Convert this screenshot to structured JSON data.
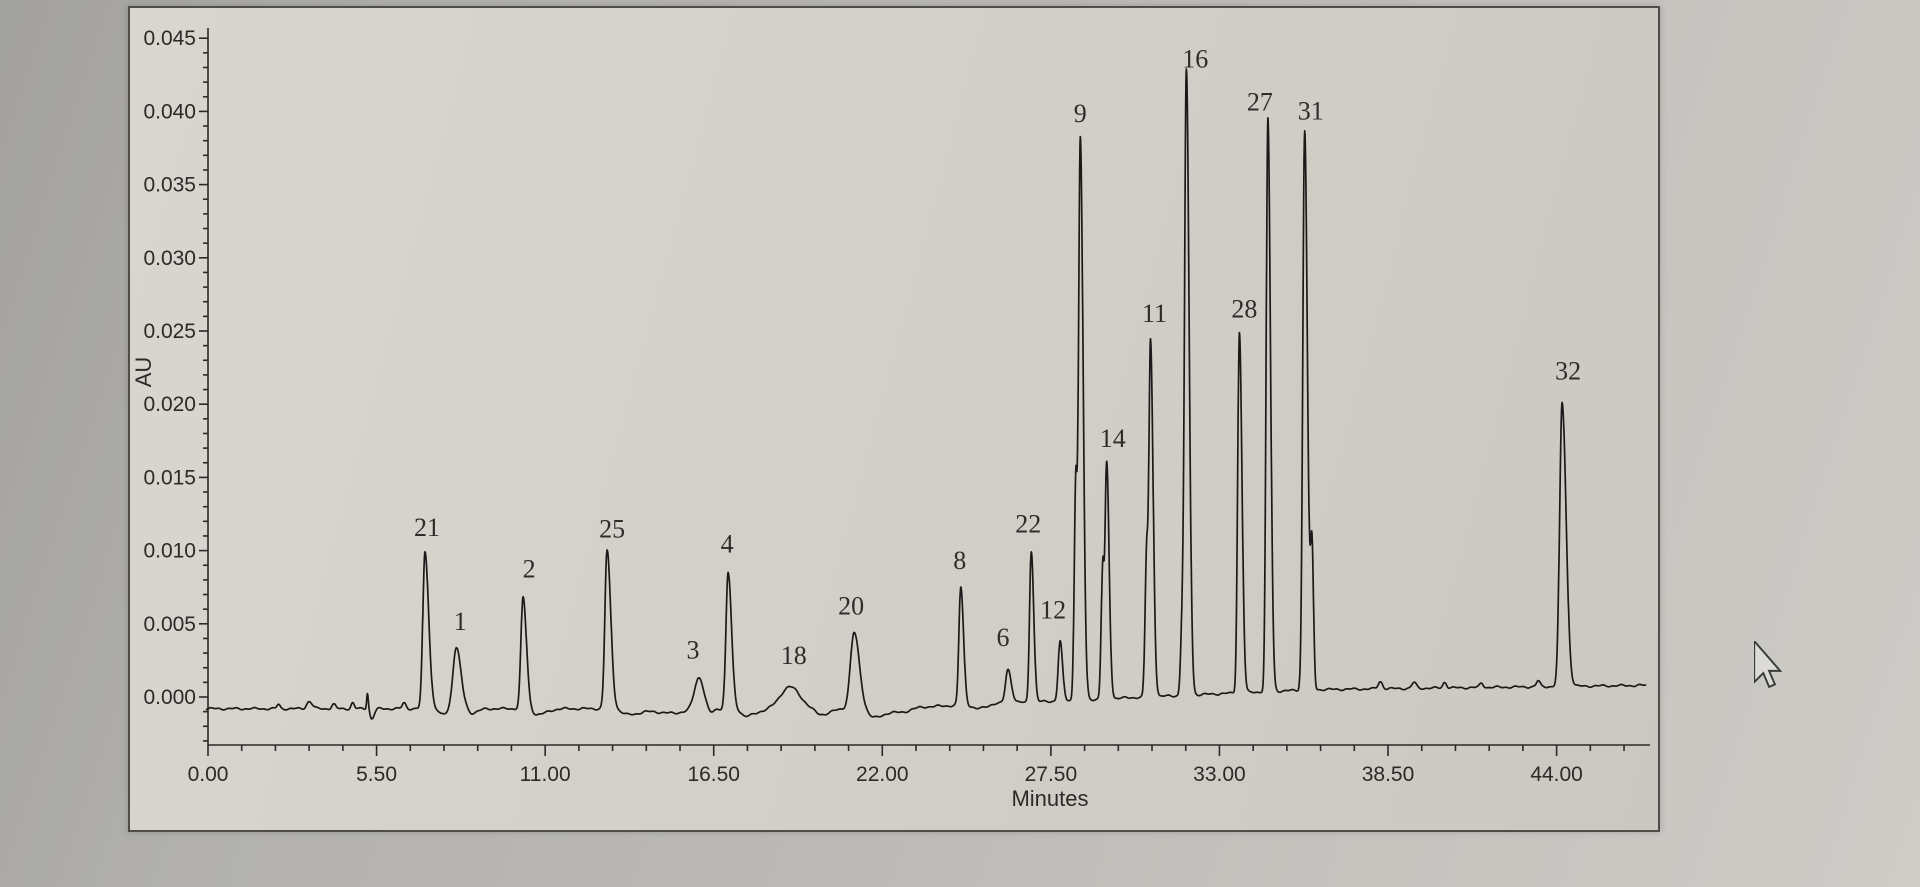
{
  "window_title": "chromatogram-photo",
  "colors": {
    "trace": "#1a1a19",
    "axis": "#2a2a29",
    "peak_label_text": "#2d2d2c",
    "window_background": "#d3d0c9",
    "desk_background": "#b2b1ae"
  },
  "cursor": {
    "type": "arrow"
  },
  "chart_data": {
    "type": "line",
    "title": "",
    "xlabel": "Minutes",
    "ylabel": "AU",
    "xlim": [
      0,
      47.0
    ],
    "ylim": [
      -0.003,
      0.0465
    ],
    "grid": false,
    "legend": "none",
    "x_major_ticks": [
      "0.00",
      "5.50",
      "11.00",
      "16.50",
      "22.00",
      "27.50",
      "33.00",
      "38.50",
      "44.00"
    ],
    "x_major_step_min": 5.5,
    "x_minor_step_min": 1.1,
    "y_major_ticks": [
      "0.000",
      "0.005",
      "0.010",
      "0.015",
      "0.020",
      "0.025",
      "0.030",
      "0.035",
      "0.040",
      "0.045"
    ],
    "y_major_step_au": 0.005,
    "y_minor_step_au": 0.001,
    "baseline_points": [
      [
        -0.1,
        -0.0008
      ],
      [
        22,
        -0.0008
      ],
      [
        36,
        0.0005
      ],
      [
        47,
        0.0008
      ]
    ],
    "peaks": [
      {
        "label": "21",
        "t": 7.08,
        "apex": 0.0099,
        "sl": 0.07,
        "sr": 0.12,
        "dx": 2,
        "gap": 16
      },
      {
        "label": "1",
        "t": 8.1,
        "apex": 0.0034,
        "sl": 0.11,
        "sr": 0.15,
        "dx": 4,
        "gap": 17
      },
      {
        "label": "2",
        "t": 10.28,
        "apex": 0.0068,
        "sl": 0.07,
        "sr": 0.11,
        "dx": 6,
        "gap": 20
      },
      {
        "label": "25",
        "t": 13.02,
        "apex": 0.01,
        "sl": 0.07,
        "sr": 0.12,
        "dx": 5,
        "gap": 13
      },
      {
        "label": "3",
        "t": 16.02,
        "apex": 0.0014,
        "sl": 0.15,
        "sr": 0.15,
        "dx": -6,
        "gap": 18
      },
      {
        "label": "4",
        "t": 16.97,
        "apex": 0.0085,
        "sl": 0.07,
        "sr": 0.11,
        "dx": -1,
        "gap": 20
      },
      {
        "label": "18",
        "t": 18.98,
        "apex": 0.0007,
        "sl": 0.3,
        "sr": 0.33,
        "dx": 4,
        "gap": 23
      },
      {
        "label": "20",
        "t": 21.08,
        "apex": 0.0044,
        "sl": 0.12,
        "sr": 0.17,
        "dx": -3,
        "gap": 18
      },
      {
        "label": "8",
        "t": 24.56,
        "apex": 0.0075,
        "sl": 0.06,
        "sr": 0.09,
        "dx": -1,
        "gap": 18
      },
      {
        "label": "6",
        "t": 26.1,
        "apex": 0.0019,
        "sl": 0.08,
        "sr": 0.11,
        "dx": -5,
        "gap": 23
      },
      {
        "label": "22",
        "t": 26.86,
        "apex": 0.01,
        "sl": 0.055,
        "sr": 0.08,
        "dx": -3,
        "gap": 18
      },
      {
        "label": "12",
        "t": 27.8,
        "apex": 0.0038,
        "sl": 0.06,
        "sr": 0.08,
        "dx": -7,
        "gap": 23
      },
      {
        "label": "9",
        "t": 28.46,
        "apex": 0.0382,
        "sl": 0.06,
        "sr": 0.09,
        "dx": 0,
        "gap": 16
      },
      {
        "label": "14",
        "t": 29.32,
        "apex": 0.016,
        "sl": 0.055,
        "sr": 0.08,
        "dx": 6,
        "gap": 16
      },
      {
        "label": "11",
        "t": 30.75,
        "apex": 0.0244,
        "sl": 0.055,
        "sr": 0.085,
        "dx": 4,
        "gap": 18
      },
      {
        "label": "16",
        "t": 31.92,
        "apex": 0.0428,
        "sl": 0.06,
        "sr": 0.09,
        "dx": 9,
        "gap": 3
      },
      {
        "label": "28",
        "t": 33.65,
        "apex": 0.0249,
        "sl": 0.055,
        "sr": 0.085,
        "dx": 5,
        "gap": 15
      },
      {
        "label": "27",
        "t": 34.58,
        "apex": 0.0395,
        "sl": 0.055,
        "sr": 0.085,
        "dx": -8,
        "gap": 8
      },
      {
        "label": "31",
        "t": 35.78,
        "apex": 0.0387,
        "sl": 0.06,
        "sr": 0.09,
        "dx": 6,
        "gap": 11
      },
      {
        "label": "32",
        "t": 44.18,
        "apex": 0.0201,
        "sl": 0.08,
        "sr": 0.13,
        "dx": 6,
        "gap": 23
      }
    ],
    "shoulder_peaks": [
      {
        "t": 28.31,
        "h": 0.014,
        "sl": 0.05,
        "sr": 0.04
      },
      {
        "t": 29.19,
        "h": 0.0085,
        "sl": 0.05,
        "sr": 0.04
      },
      {
        "t": 30.62,
        "h": 0.009,
        "sl": 0.05,
        "sr": 0.04
      },
      {
        "t": 31.78,
        "h": 0.0042,
        "sl": 0.05,
        "sr": 0.04
      },
      {
        "t": 36.02,
        "h": 0.0095,
        "sl": 0.05,
        "sr": 0.05
      }
    ],
    "minor_features": [
      {
        "t": 2.3,
        "h": 0.0003,
        "sl": 0.05,
        "sr": 0.05
      },
      {
        "t": 3.3,
        "h": 0.0005,
        "sl": 0.08,
        "sr": 0.1
      },
      {
        "t": 4.1,
        "h": 0.0003,
        "sl": 0.06,
        "sr": 0.06
      },
      {
        "t": 4.72,
        "h": 0.0004,
        "sl": 0.05,
        "sr": 0.05
      },
      {
        "t": 5.2,
        "h": 0.0011,
        "sl": 0.025,
        "sr": 0.03
      },
      {
        "t": 5.34,
        "h": -0.0007,
        "sl": 0.05,
        "sr": 0.08
      },
      {
        "t": 6.4,
        "h": 0.0004,
        "sl": 0.06,
        "sr": 0.06
      },
      {
        "t": 7.62,
        "h": -0.0004,
        "sl": 0.1,
        "sr": 0.2
      },
      {
        "t": 8.6,
        "h": -0.0003,
        "sl": 0.1,
        "sr": 0.2
      },
      {
        "t": 10.75,
        "h": -0.0004,
        "sl": 0.15,
        "sr": 0.3
      },
      {
        "t": 13.7,
        "h": -0.0004,
        "sl": 0.2,
        "sr": 0.4
      },
      {
        "t": 15.1,
        "h": -0.0003,
        "sl": 0.5,
        "sr": 0.5
      },
      {
        "t": 16.4,
        "h": -0.0003,
        "sl": 0.1,
        "sr": 0.1
      },
      {
        "t": 17.55,
        "h": -0.0005,
        "sl": 0.15,
        "sr": 0.35
      },
      {
        "t": 20.0,
        "h": -0.0004,
        "sl": 0.2,
        "sr": 0.3
      },
      {
        "t": 21.75,
        "h": -0.0006,
        "sl": 0.2,
        "sr": 0.3
      },
      {
        "t": 22.6,
        "h": -0.0003,
        "sl": 0.3,
        "sr": 0.3
      },
      {
        "t": 25.1,
        "h": -0.0003,
        "sl": 0.15,
        "sr": 0.25
      },
      {
        "t": 38.25,
        "h": 0.0005,
        "sl": 0.07,
        "sr": 0.07
      },
      {
        "t": 39.35,
        "h": 0.0004,
        "sl": 0.07,
        "sr": 0.07
      },
      {
        "t": 40.35,
        "h": 0.0004,
        "sl": 0.06,
        "sr": 0.06
      },
      {
        "t": 41.55,
        "h": 0.0003,
        "sl": 0.06,
        "sr": 0.06
      },
      {
        "t": 43.4,
        "h": 0.0004,
        "sl": 0.06,
        "sr": 0.06
      }
    ]
  }
}
